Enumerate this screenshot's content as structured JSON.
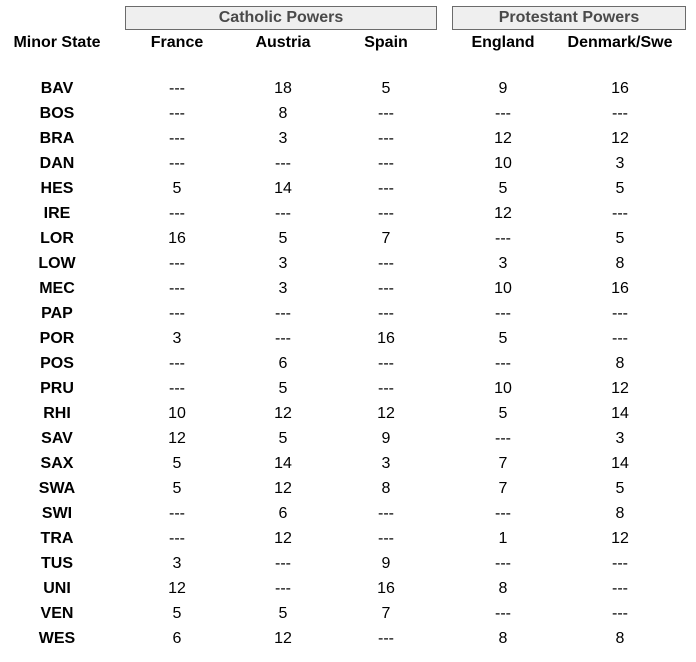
{
  "groups": {
    "catholic": "Catholic Powers",
    "protestant": "Protestant Powers"
  },
  "headers": [
    "Minor State",
    "France",
    "Austria",
    "Spain",
    "England",
    "Denmark/Swe"
  ],
  "rows": [
    [
      "BAV",
      "---",
      "18",
      "5",
      "9",
      "16"
    ],
    [
      "BOS",
      "---",
      "8",
      "---",
      "---",
      "---"
    ],
    [
      "BRA",
      "---",
      "3",
      "---",
      "12",
      "12"
    ],
    [
      "DAN",
      "---",
      "---",
      "---",
      "10",
      "3"
    ],
    [
      "HES",
      "5",
      "14",
      "---",
      "5",
      "5"
    ],
    [
      "IRE",
      "---",
      "---",
      "---",
      "12",
      "---"
    ],
    [
      "LOR",
      "16",
      "5",
      "7",
      "---",
      "5"
    ],
    [
      "LOW",
      "---",
      "3",
      "---",
      "3",
      "8"
    ],
    [
      "MEC",
      "---",
      "3",
      "---",
      "10",
      "16"
    ],
    [
      "PAP",
      "---",
      "---",
      "---",
      "---",
      "---"
    ],
    [
      "POR",
      "3",
      "---",
      "16",
      "5",
      "---"
    ],
    [
      "POS",
      "---",
      "6",
      "---",
      "---",
      "8"
    ],
    [
      "PRU",
      "---",
      "5",
      "---",
      "10",
      "12"
    ],
    [
      "RHI",
      "10",
      "12",
      "12",
      "5",
      "14"
    ],
    [
      "SAV",
      "12",
      "5",
      "9",
      "---",
      "3"
    ],
    [
      "SAX",
      "5",
      "14",
      "3",
      "7",
      "14"
    ],
    [
      "SWA",
      "5",
      "12",
      "8",
      "7",
      "5"
    ],
    [
      "SWI",
      "---",
      "6",
      "---",
      "---",
      "8"
    ],
    [
      "TRA",
      "---",
      "12",
      "---",
      "1",
      "12"
    ],
    [
      "TUS",
      "3",
      "---",
      "9",
      "---",
      "---"
    ],
    [
      "UNI",
      "12",
      "---",
      "16",
      "8",
      "---"
    ],
    [
      "VEN",
      "5",
      "5",
      "7",
      "---",
      "---"
    ],
    [
      "WES",
      "6",
      "12",
      "---",
      "8",
      "8"
    ]
  ]
}
